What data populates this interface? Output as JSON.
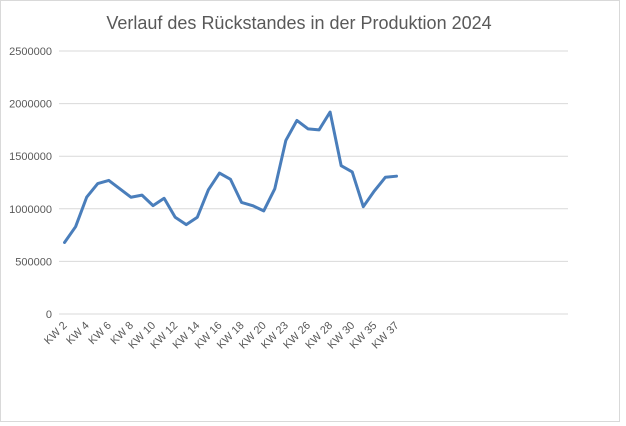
{
  "chart_data": {
    "type": "line",
    "title": "Verlauf des Rückstandes in der Produktion 2024",
    "categories": [
      "KW 2",
      null,
      "KW 4",
      null,
      "KW 6",
      null,
      "KW 8",
      null,
      "KW 10",
      null,
      "KW 12",
      null,
      "KW 14",
      null,
      "KW 16",
      null,
      "KW 18",
      null,
      "KW 20",
      null,
      "KW 23",
      null,
      "KW 26",
      null,
      "KW 28",
      null,
      "KW 30",
      null,
      "KW 35",
      null,
      "KW 37",
      null,
      null,
      null,
      null,
      null,
      null,
      null,
      null,
      null,
      null,
      null,
      null,
      null,
      null,
      null
    ],
    "series": [
      {
        "color": "#4a7ebb",
        "values": [
          680000,
          830000,
          1110000,
          1240000,
          1270000,
          1190000,
          1110000,
          1130000,
          1030000,
          1100000,
          920000,
          850000,
          920000,
          1180000,
          1340000,
          1280000,
          1060000,
          1030000,
          980000,
          1190000,
          1650000,
          1840000,
          1760000,
          1750000,
          1920000,
          1410000,
          1350000,
          1020000,
          1170000,
          1300000,
          1310000,
          null,
          null,
          null,
          null,
          null,
          null,
          null,
          null,
          null,
          null,
          null,
          null,
          null,
          null,
          null
        ]
      }
    ],
    "ylim": [
      0,
      2500000
    ],
    "yticks": [
      0,
      500000,
      1000000,
      1500000,
      2000000,
      2500000
    ],
    "grid": true
  }
}
